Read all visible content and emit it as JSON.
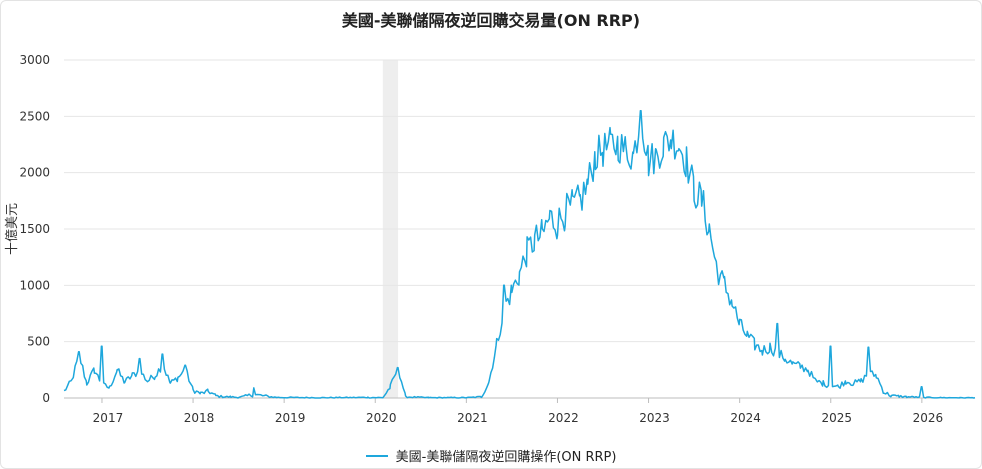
{
  "chart_data": {
    "type": "line",
    "title": "美國-美聯儲隔夜逆回購交易量(ON RRP)",
    "ylabel": "十億美元",
    "xlabel": "",
    "ylim": [
      0,
      3000
    ],
    "xlim": [
      "2016-08",
      "2026-08"
    ],
    "yticks": [
      "0",
      "500",
      "1000",
      "1500",
      "2000",
      "2500",
      "3000"
    ],
    "xticks": [
      "2017",
      "2018",
      "2019",
      "2020",
      "2021",
      "2022",
      "2023",
      "2024",
      "2025",
      "2026"
    ],
    "grid": "horizontal",
    "legend_position": "bottom-center",
    "shaded_period": {
      "start": "2020-02",
      "end": "2020-04"
    },
    "series": [
      {
        "name": "美國-美聯儲隔夜逆回購操作(ON RRP)",
        "color": "#1ea7dc",
        "points": [
          [
            "2016-08",
            60
          ],
          [
            "2016-09",
            150
          ],
          [
            "2016-10",
            380
          ],
          [
            "2016-11",
            130
          ],
          [
            "2016-12",
            250
          ],
          [
            "2017-01",
            120
          ],
          [
            "2017-02",
            90
          ],
          [
            "2017-03",
            250
          ],
          [
            "2017-04",
            140
          ],
          [
            "2017-05",
            200
          ],
          [
            "2017-06",
            240
          ],
          [
            "2017-07",
            150
          ],
          [
            "2017-08",
            200
          ],
          [
            "2017-09",
            300
          ],
          [
            "2017-10",
            130
          ],
          [
            "2017-11",
            180
          ],
          [
            "2017-12",
            250
          ],
          [
            "2018-01",
            70
          ],
          [
            "2018-02",
            40
          ],
          [
            "2018-03",
            60
          ],
          [
            "2018-04",
            20
          ],
          [
            "2018-05",
            10
          ],
          [
            "2018-06",
            10
          ],
          [
            "2018-07",
            5
          ],
          [
            "2018-09",
            30
          ],
          [
            "2018-12",
            5
          ],
          [
            "2019-06",
            3
          ],
          [
            "2019-12",
            5
          ],
          [
            "2020-02",
            3
          ],
          [
            "2020-03",
            100
          ],
          [
            "2020-04",
            270
          ],
          [
            "2020-05",
            10
          ],
          [
            "2020-08",
            3
          ],
          [
            "2021-01",
            3
          ],
          [
            "2021-03",
            10
          ],
          [
            "2021-04",
            150
          ],
          [
            "2021-05",
            480
          ],
          [
            "2021-06",
            800
          ],
          [
            "2021-07",
            950
          ],
          [
            "2021-08",
            1100
          ],
          [
            "2021-09",
            1300
          ],
          [
            "2021-10",
            1400
          ],
          [
            "2021-11",
            1450
          ],
          [
            "2021-12",
            1600
          ],
          [
            "2022-01",
            1550
          ],
          [
            "2022-02",
            1650
          ],
          [
            "2022-03",
            1700
          ],
          [
            "2022-04",
            1750
          ],
          [
            "2022-05",
            1900
          ],
          [
            "2022-06",
            2150
          ],
          [
            "2022-07",
            2200
          ],
          [
            "2022-08",
            2250
          ],
          [
            "2022-09",
            2250
          ],
          [
            "2022-10",
            2200
          ],
          [
            "2022-11",
            2150
          ],
          [
            "2022-12",
            2500
          ],
          [
            "2023-01",
            2100
          ],
          [
            "2023-02",
            2150
          ],
          [
            "2023-03",
            2250
          ],
          [
            "2023-04",
            2300
          ],
          [
            "2023-05",
            2250
          ],
          [
            "2023-06",
            2100
          ],
          [
            "2023-07",
            1850
          ],
          [
            "2023-08",
            1750
          ],
          [
            "2023-09",
            1500
          ],
          [
            "2023-10",
            1150
          ],
          [
            "2023-11",
            1000
          ],
          [
            "2023-12",
            850
          ],
          [
            "2024-01",
            650
          ],
          [
            "2024-02",
            550
          ],
          [
            "2024-03",
            470
          ],
          [
            "2024-04",
            420
          ],
          [
            "2024-05",
            450
          ],
          [
            "2024-06",
            400
          ],
          [
            "2024-07",
            350
          ],
          [
            "2024-08",
            300
          ],
          [
            "2024-09",
            280
          ],
          [
            "2024-10",
            250
          ],
          [
            "2024-11",
            150
          ],
          [
            "2024-12",
            130
          ],
          [
            "2025-01",
            110
          ],
          [
            "2025-02",
            100
          ],
          [
            "2025-03",
            150
          ],
          [
            "2025-04",
            130
          ],
          [
            "2025-05",
            150
          ],
          [
            "2025-06",
            220
          ],
          [
            "2025-07",
            200
          ],
          [
            "2025-08",
            50
          ],
          [
            "2025-09",
            20
          ],
          [
            "2025-10",
            15
          ],
          [
            "2025-11",
            10
          ],
          [
            "2025-12",
            8
          ],
          [
            "2026-01",
            5
          ],
          [
            "2026-03",
            3
          ],
          [
            "2026-06",
            2
          ],
          [
            "2026-08",
            2
          ]
        ],
        "spikes": [
          [
            "2016-10",
            410
          ],
          [
            "2017-01",
            460
          ],
          [
            "2017-06",
            350
          ],
          [
            "2017-09",
            390
          ],
          [
            "2017-12",
            290
          ],
          [
            "2018-09",
            90
          ],
          [
            "2020-04",
            270
          ],
          [
            "2021-06",
            1000
          ],
          [
            "2022-12",
            2550
          ],
          [
            "2024-06",
            660
          ],
          [
            "2025-01",
            460
          ],
          [
            "2025-06",
            450
          ],
          [
            "2026-01",
            100
          ]
        ]
      }
    ]
  }
}
